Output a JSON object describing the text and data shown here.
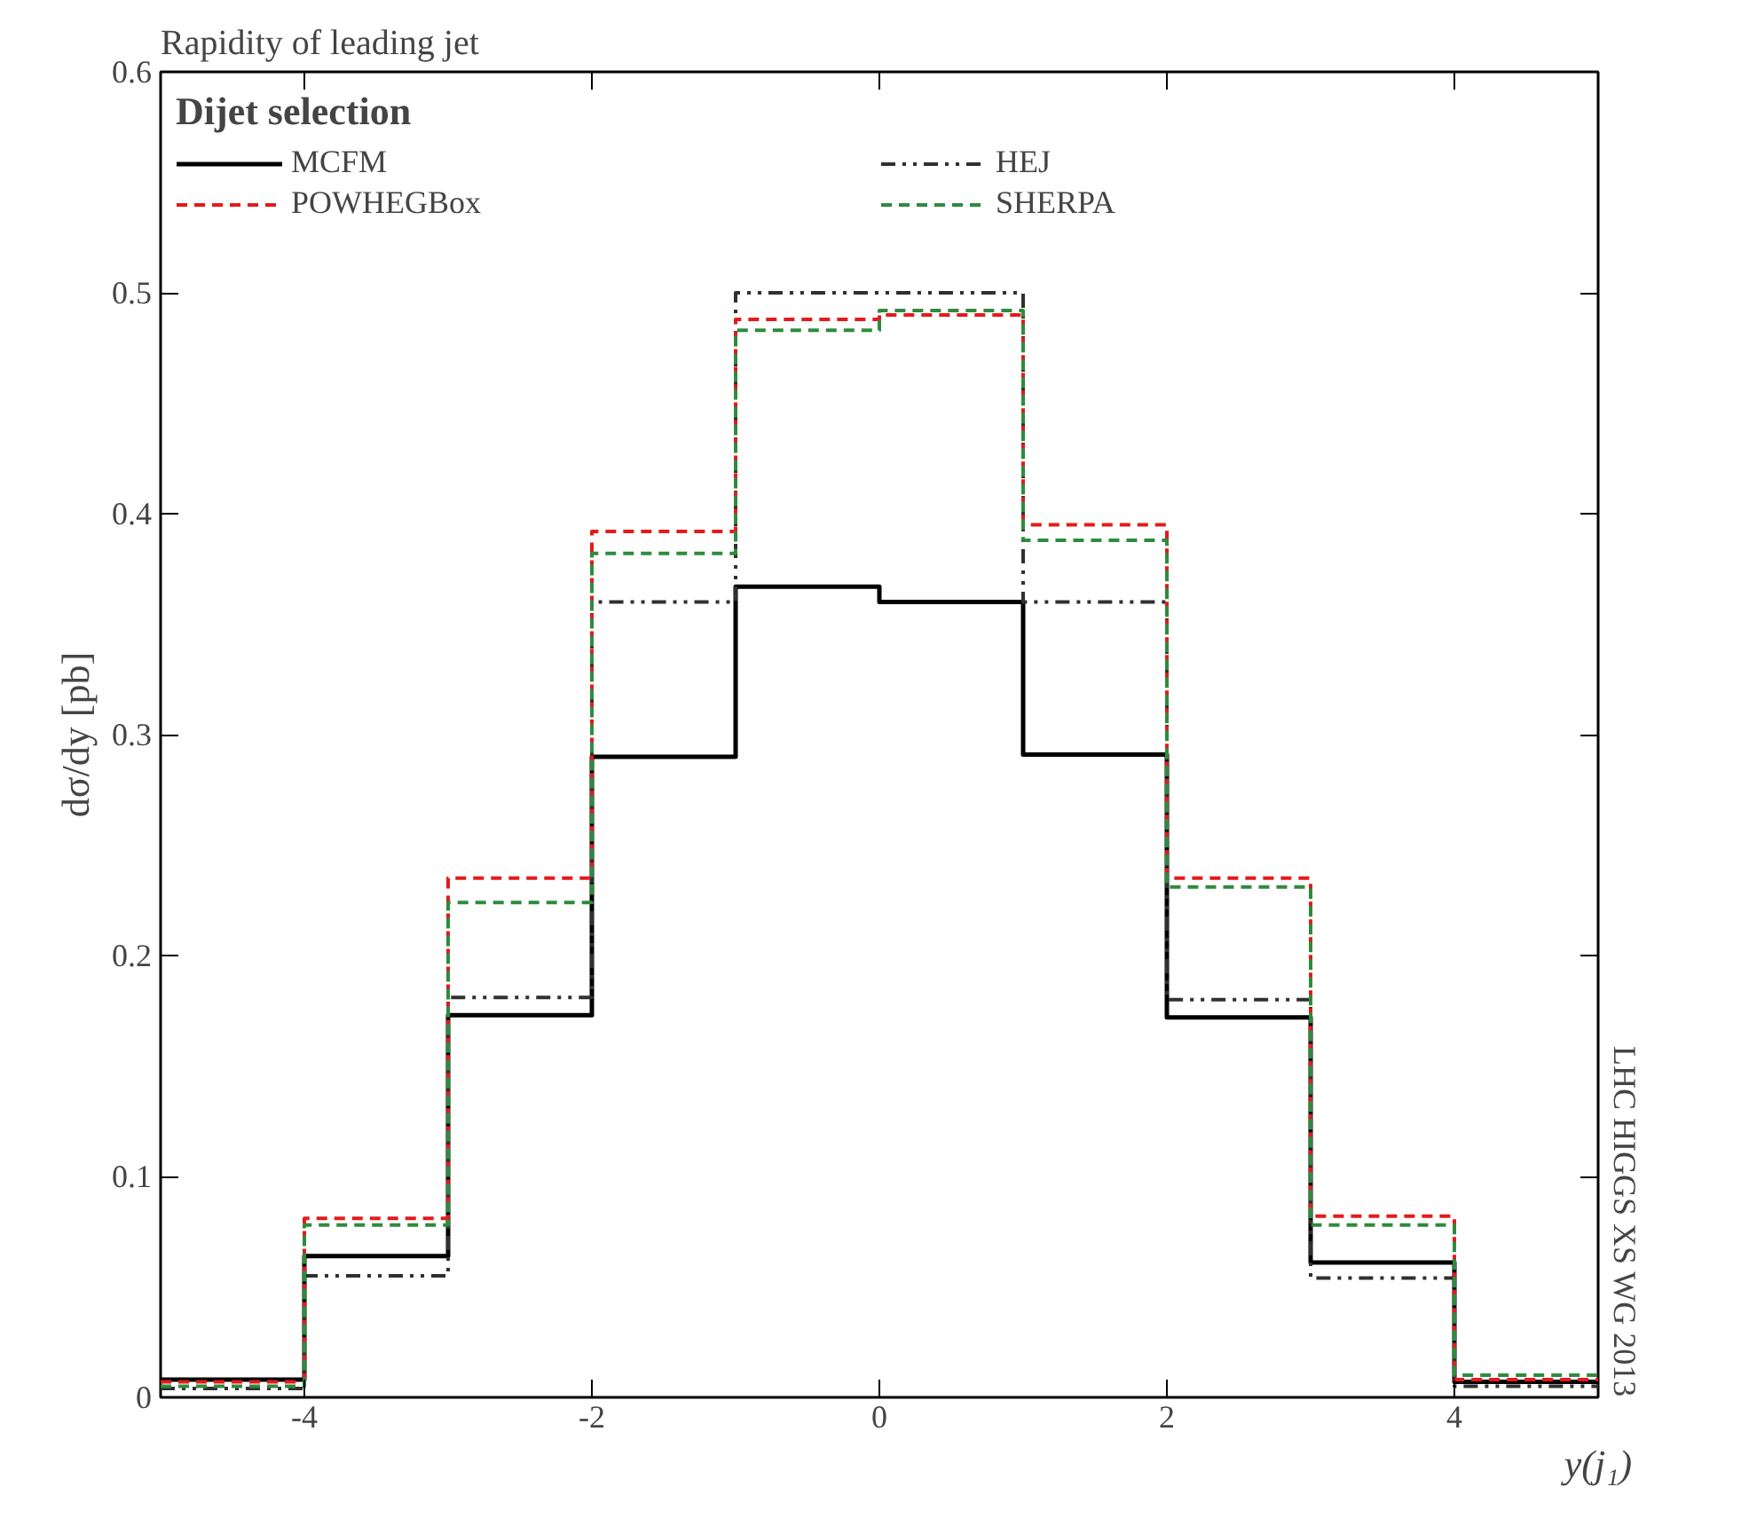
{
  "chart_data": {
    "type": "histogram",
    "title": "Rapidity of leading jet",
    "xlabel": "y(j₁)",
    "ylabel": "dσ/dy [pb]",
    "legend_title": "Dijet selection",
    "legend": "top",
    "grid": false,
    "annotations": [
      "LHC HIGGS XS WG 2013"
    ],
    "bins": [
      -5,
      -4,
      -3,
      -2,
      -1,
      0,
      1,
      2,
      3,
      4,
      5
    ],
    "xlim": [
      -5,
      5
    ],
    "xticks": [
      -4,
      -2,
      0,
      2,
      4
    ],
    "ylim": [
      0,
      0.6
    ],
    "yticks": [
      0,
      0.1,
      0.2,
      0.3,
      0.4,
      0.5,
      0.6
    ],
    "series": [
      {
        "name": "MCFM",
        "color": "#000000",
        "line_style": "solid",
        "values": [
          0.008,
          0.064,
          0.173,
          0.29,
          0.367,
          0.36,
          0.291,
          0.172,
          0.061,
          0.007
        ]
      },
      {
        "name": "HEJ",
        "color": "#303030",
        "line_style": "dotted",
        "values": [
          0.004,
          0.055,
          0.181,
          0.36,
          0.5,
          0.5,
          0.36,
          0.18,
          0.054,
          0.005
        ]
      },
      {
        "name": "POWHEGBox",
        "color": "#e41a1c",
        "line_style": "dashed",
        "values": [
          0.007,
          0.081,
          0.235,
          0.392,
          0.488,
          0.49,
          0.395,
          0.235,
          0.082,
          0.008
        ]
      },
      {
        "name": "SHERPA",
        "color": "#2e8b3e",
        "line_style": "dashed",
        "values": [
          0.005,
          0.078,
          0.224,
          0.382,
          0.483,
          0.492,
          0.388,
          0.231,
          0.078,
          0.01
        ]
      }
    ]
  }
}
